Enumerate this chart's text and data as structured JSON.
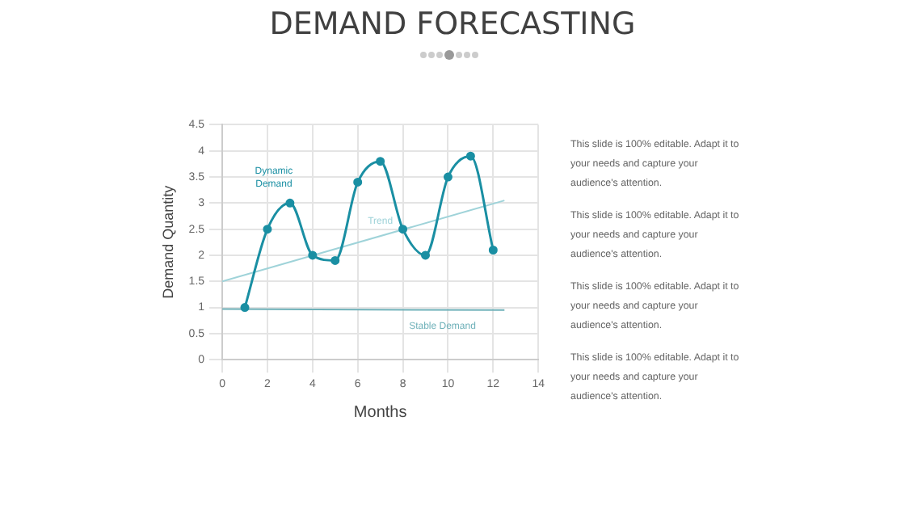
{
  "chart_data": {
    "type": "line",
    "title": "DEMAND FORECASTING",
    "xlabel": "Months",
    "ylabel": "Demand Quantity",
    "xlim": [
      0,
      14
    ],
    "xticks": [
      0,
      2,
      4,
      6,
      8,
      10,
      12,
      14
    ],
    "ylim": [
      0,
      4.5
    ],
    "yticks": [
      0,
      0.5,
      1,
      1.5,
      2,
      2.5,
      3,
      3.5,
      4,
      4.5
    ],
    "grid": true,
    "line_style": "solid",
    "series": [
      {
        "name": "Dynamic Demand",
        "color": "#1a8fa3",
        "marker": "circle",
        "x": [
          1,
          2,
          3,
          4,
          5,
          6,
          7,
          8,
          9,
          10,
          11,
          12
        ],
        "values": [
          1,
          2.5,
          3,
          2,
          1.9,
          3.4,
          3.8,
          2.5,
          2,
          3.5,
          3.9,
          2.1
        ]
      },
      {
        "name": "Trend",
        "color": "#9fd3d9",
        "marker": "none",
        "x": [
          0,
          12.5
        ],
        "values": [
          1.5,
          3.05
        ]
      },
      {
        "name": "Stable Demand",
        "color": "#6fb1b9",
        "marker": "none",
        "x": [
          0,
          12.5
        ],
        "values": [
          0.97,
          0.95
        ]
      }
    ],
    "annotations": [
      "This slide is 100% editable. Adapt it to your needs and capture your audience's attention.",
      "This slide is 100% editable. Adapt it to your needs and capture your audience's attention.",
      "This slide is 100% editable. Adapt it to your needs and capture your audience's attention.",
      "This slide is 100% editable. Adapt it to your needs and capture your audience's attention."
    ]
  }
}
